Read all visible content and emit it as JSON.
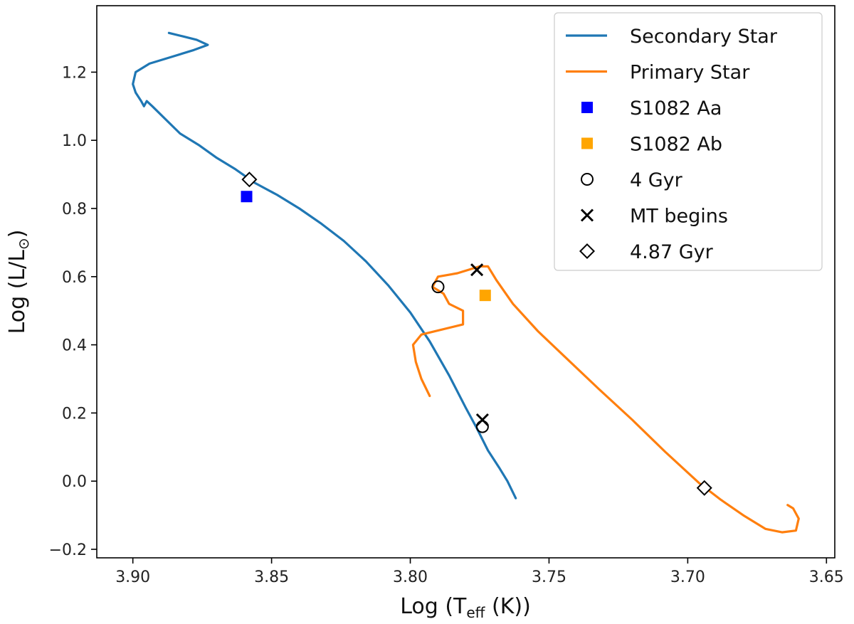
{
  "chart_data": {
    "type": "line",
    "title": "",
    "xlabel": "Log (T",
    "xlabel_sub": "eff",
    "xlabel_tail": " (K))",
    "ylabel": "Log (L/L",
    "ylabel_sym": "⊙",
    "ylabel_tail": ")",
    "xlim": [
      3.913,
      3.647
    ],
    "ylim": [
      -0.225,
      1.395
    ],
    "xticks": [
      3.9,
      3.85,
      3.8,
      3.75,
      3.7,
      3.65
    ],
    "xtick_labels": [
      "3.90",
      "3.85",
      "3.80",
      "3.75",
      "3.70",
      "3.65"
    ],
    "yticks": [
      -0.2,
      0.0,
      0.2,
      0.4,
      0.6,
      0.8,
      1.0,
      1.2
    ],
    "ytick_labels": [
      "−0.2",
      "0.0",
      "0.2",
      "0.4",
      "0.6",
      "0.8",
      "1.0",
      "1.2"
    ],
    "grid": false,
    "legend_position": "top-right",
    "series": [
      {
        "name": "Secondary Star",
        "color": "#1f77b4",
        "x": [
          3.887,
          3.882,
          3.877,
          3.873,
          3.878,
          3.886,
          3.894,
          3.899,
          3.9,
          3.899,
          3.897,
          3.896,
          3.895,
          3.893,
          3.888,
          3.883,
          3.876,
          3.87,
          3.863,
          3.856,
          3.848,
          3.84,
          3.832,
          3.824,
          3.816,
          3.808,
          3.8,
          3.793,
          3.786,
          3.78,
          3.776,
          3.772,
          3.768,
          3.765,
          3.762
        ],
        "y": [
          1.315,
          1.305,
          1.295,
          1.28,
          1.265,
          1.245,
          1.225,
          1.2,
          1.165,
          1.14,
          1.115,
          1.1,
          1.115,
          1.1,
          1.06,
          1.02,
          0.985,
          0.95,
          0.915,
          0.875,
          0.84,
          0.8,
          0.755,
          0.705,
          0.645,
          0.575,
          0.495,
          0.41,
          0.31,
          0.215,
          0.155,
          0.09,
          0.04,
          0.0,
          -0.05
        ]
      },
      {
        "name": "Primary Star",
        "color": "#ff7f0e",
        "x": [
          3.793,
          3.796,
          3.798,
          3.799,
          3.796,
          3.781,
          3.781,
          3.786,
          3.788,
          3.792,
          3.79,
          3.783,
          3.775,
          3.772,
          3.769,
          3.763,
          3.754,
          3.743,
          3.732,
          3.72,
          3.708,
          3.696,
          3.688,
          3.68,
          3.672,
          3.666,
          3.661,
          3.66,
          3.662,
          3.664
        ],
        "y": [
          0.25,
          0.3,
          0.35,
          0.4,
          0.43,
          0.46,
          0.5,
          0.52,
          0.55,
          0.57,
          0.6,
          0.61,
          0.63,
          0.63,
          0.59,
          0.52,
          0.44,
          0.355,
          0.27,
          0.18,
          0.085,
          -0.005,
          -0.055,
          -0.1,
          -0.14,
          -0.15,
          -0.145,
          -0.11,
          -0.08,
          -0.07
        ]
      }
    ],
    "markers": [
      {
        "name": "S1082 Aa",
        "shape": "square",
        "color": "#0000ff",
        "points": [
          [
            3.859,
            0.835
          ]
        ]
      },
      {
        "name": "S1082 Ab",
        "shape": "square",
        "color": "#ffa500",
        "points": [
          [
            3.773,
            0.545
          ]
        ]
      },
      {
        "name": "4 Gyr",
        "shape": "circle",
        "color": "#000000",
        "points": [
          [
            3.79,
            0.57
          ],
          [
            3.774,
            0.16
          ]
        ]
      },
      {
        "name": "MT begins",
        "shape": "x",
        "color": "#000000",
        "points": [
          [
            3.776,
            0.62
          ],
          [
            3.774,
            0.18
          ]
        ]
      },
      {
        "name": "4.87 Gyr",
        "shape": "diamond",
        "color": "#000000",
        "points": [
          [
            3.858,
            0.885
          ],
          [
            3.694,
            -0.02
          ]
        ]
      }
    ],
    "legend": [
      {
        "label": "Secondary Star",
        "kind": "line",
        "color": "#1f77b4"
      },
      {
        "label": "Primary Star",
        "kind": "line",
        "color": "#ff7f0e"
      },
      {
        "label": "S1082 Aa",
        "kind": "square",
        "color": "#0000ff"
      },
      {
        "label": "S1082 Ab",
        "kind": "square",
        "color": "#ffa500"
      },
      {
        "label": "4 Gyr",
        "kind": "circle",
        "color": "#000000"
      },
      {
        "label": "MT begins",
        "kind": "x",
        "color": "#000000"
      },
      {
        "label": "4.87 Gyr",
        "kind": "diamond",
        "color": "#000000"
      }
    ]
  }
}
